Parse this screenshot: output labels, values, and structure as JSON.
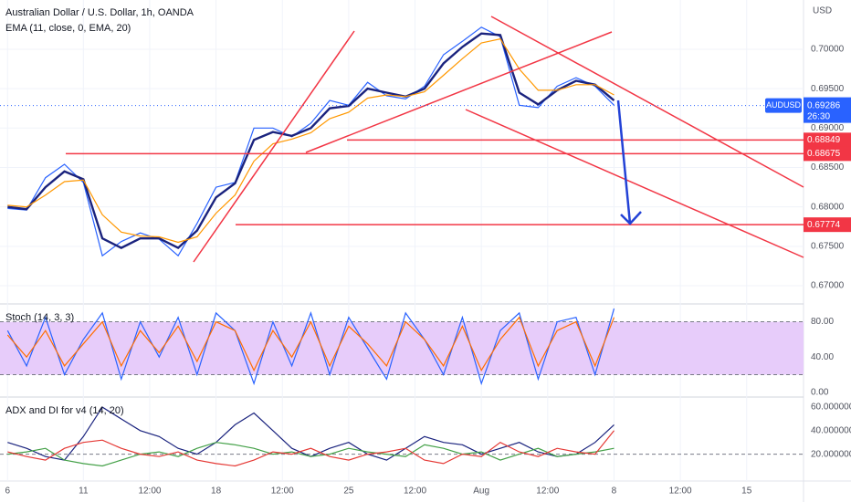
{
  "chart_data": [
    {
      "type": "line",
      "title": "Australian Dollar / U.S. Dollar, 1h, OANDA",
      "subtitle": "EMA (11, close, 0, EMA, 20)",
      "y_label": "USD",
      "x": [
        0,
        1,
        2,
        3,
        4,
        5,
        6,
        7,
        8,
        9,
        10,
        11,
        12,
        13,
        14,
        15,
        16,
        17,
        18,
        19,
        20,
        21,
        22,
        23,
        24,
        25,
        26,
        27,
        28,
        29,
        30,
        31,
        32
      ],
      "xlim": [
        -0.4,
        42
      ],
      "xticks": [
        {
          "value": 0,
          "label": "6"
        },
        {
          "value": 4,
          "label": "11"
        },
        {
          "value": 7.5,
          "label": "12:00"
        },
        {
          "value": 11,
          "label": "18"
        },
        {
          "value": 14.5,
          "label": "12:00"
        },
        {
          "value": 18,
          "label": "25"
        },
        {
          "value": 21.5,
          "label": "12:00"
        },
        {
          "value": 25,
          "label": "Aug"
        },
        {
          "value": 28.5,
          "label": "12:00"
        },
        {
          "value": 32,
          "label": "8"
        },
        {
          "value": 35.5,
          "label": "12:00"
        },
        {
          "value": 39,
          "label": "15"
        }
      ],
      "ylim": [
        0.6678,
        0.70625
      ],
      "yticks": [
        {
          "value": 0.67,
          "label": "0.67000"
        },
        {
          "value": 0.675,
          "label": "0.67500"
        },
        {
          "value": 0.68,
          "label": "0.68000"
        },
        {
          "value": 0.685,
          "label": "0.68500"
        },
        {
          "value": 0.69,
          "label": "0.69000"
        },
        {
          "value": 0.695,
          "label": "0.69500"
        },
        {
          "value": 0.7,
          "label": "0.70000"
        }
      ],
      "grid": true,
      "series": [
        {
          "name": "AUDUSD",
          "color": "#2962ff",
          "values": [
            0.6798,
            0.6796,
            0.6837,
            0.6854,
            0.6831,
            0.6738,
            0.6756,
            0.6767,
            0.6759,
            0.6738,
            0.6779,
            0.6825,
            0.6831,
            0.69,
            0.69,
            0.6889,
            0.6906,
            0.6935,
            0.6929,
            0.6958,
            0.6941,
            0.6937,
            0.6953,
            0.6993,
            0.701,
            0.7028,
            0.7016,
            0.6929,
            0.6926,
            0.6953,
            0.6964,
            0.6953,
            0.6929
          ]
        },
        {
          "color": "#1a237e",
          "values": [
            0.68,
            0.6797,
            0.6825,
            0.6845,
            0.6835,
            0.676,
            0.6748,
            0.676,
            0.676,
            0.6748,
            0.677,
            0.6812,
            0.683,
            0.6885,
            0.6895,
            0.689,
            0.69,
            0.6925,
            0.6928,
            0.695,
            0.6945,
            0.694,
            0.695,
            0.6982,
            0.7003,
            0.702,
            0.7018,
            0.6945,
            0.693,
            0.6948,
            0.696,
            0.6955,
            0.6935
          ]
        },
        {
          "color": "#ff9800",
          "values": [
            0.6802,
            0.68,
            0.6815,
            0.6832,
            0.6834,
            0.679,
            0.6768,
            0.6763,
            0.6762,
            0.6755,
            0.6762,
            0.6792,
            0.6815,
            0.6858,
            0.688,
            0.6886,
            0.6894,
            0.6912,
            0.692,
            0.6938,
            0.6942,
            0.694,
            0.6946,
            0.6967,
            0.6988,
            0.7008,
            0.7013,
            0.6975,
            0.6948,
            0.6948,
            0.6955,
            0.6955,
            0.6942
          ]
        }
      ],
      "levels": [
        0.68849,
        0.68675,
        0.67774
      ],
      "level_color": "#f23645",
      "last_price": 0.69286,
      "countdown": "26:30"
    },
    {
      "type": "line",
      "title": "Stoch (14, 3, 3)",
      "x": [
        0,
        1,
        2,
        3,
        4,
        5,
        6,
        7,
        8,
        9,
        10,
        11,
        12,
        13,
        14,
        15,
        16,
        17,
        18,
        19,
        20,
        21,
        22,
        23,
        24,
        25,
        26,
        27,
        28,
        29,
        30,
        31,
        32
      ],
      "xlim": [
        -0.4,
        42
      ],
      "ylim": [
        -4.3,
        99.2
      ],
      "yticks": [
        {
          "value": 0,
          "label": "0.00"
        },
        {
          "value": 40,
          "label": "40.00"
        },
        {
          "value": 80,
          "label": "80.00"
        }
      ],
      "band": [
        20,
        80
      ],
      "band_color": "#e7ccfa",
      "series": [
        {
          "color": "#2962ff",
          "values": [
            70,
            30,
            85,
            20,
            60,
            90,
            15,
            80,
            40,
            85,
            20,
            90,
            70,
            10,
            80,
            30,
            90,
            20,
            85,
            50,
            15,
            90,
            60,
            20,
            85,
            10,
            70,
            90,
            15,
            80,
            85,
            20,
            95
          ]
        },
        {
          "color": "#ff6d00",
          "values": [
            65,
            40,
            70,
            30,
            55,
            80,
            30,
            70,
            45,
            75,
            35,
            80,
            70,
            25,
            70,
            40,
            80,
            30,
            75,
            55,
            30,
            80,
            60,
            30,
            75,
            25,
            60,
            85,
            30,
            70,
            80,
            30,
            85
          ]
        }
      ]
    },
    {
      "type": "line",
      "title": "ADX and DI for v4 (14, 20)",
      "x": [
        0,
        1,
        2,
        3,
        4,
        5,
        6,
        7,
        8,
        9,
        10,
        11,
        12,
        13,
        14,
        15,
        16,
        17,
        18,
        19,
        20,
        21,
        22,
        23,
        24,
        25,
        26,
        27,
        28,
        29,
        30,
        31,
        32
      ],
      "xlim": [
        -0.4,
        42
      ],
      "ylim": [
        -2,
        67.8
      ],
      "yticks": [
        {
          "value": 20,
          "label": "20.000000"
        },
        {
          "value": 40,
          "label": "40.000000"
        },
        {
          "value": 60,
          "label": "60.000000"
        }
      ],
      "ref_line": 20,
      "series": [
        {
          "color": "#1a237e",
          "values": [
            30,
            25,
            18,
            15,
            35,
            60,
            50,
            40,
            35,
            25,
            20,
            30,
            45,
            55,
            40,
            25,
            18,
            25,
            30,
            20,
            15,
            25,
            35,
            30,
            28,
            20,
            25,
            30,
            22,
            18,
            20,
            30,
            45
          ]
        },
        {
          "color": "#43a047",
          "values": [
            20,
            22,
            25,
            15,
            12,
            10,
            15,
            20,
            22,
            18,
            25,
            30,
            28,
            25,
            20,
            22,
            18,
            20,
            25,
            22,
            20,
            18,
            28,
            25,
            20,
            22,
            15,
            20,
            25,
            18,
            20,
            22,
            25
          ]
        },
        {
          "color": "#e53935",
          "values": [
            22,
            18,
            15,
            25,
            30,
            32,
            25,
            20,
            18,
            22,
            15,
            12,
            10,
            15,
            22,
            20,
            25,
            18,
            15,
            20,
            22,
            25,
            15,
            12,
            20,
            18,
            30,
            22,
            18,
            25,
            22,
            20,
            40
          ]
        }
      ]
    }
  ]
}
